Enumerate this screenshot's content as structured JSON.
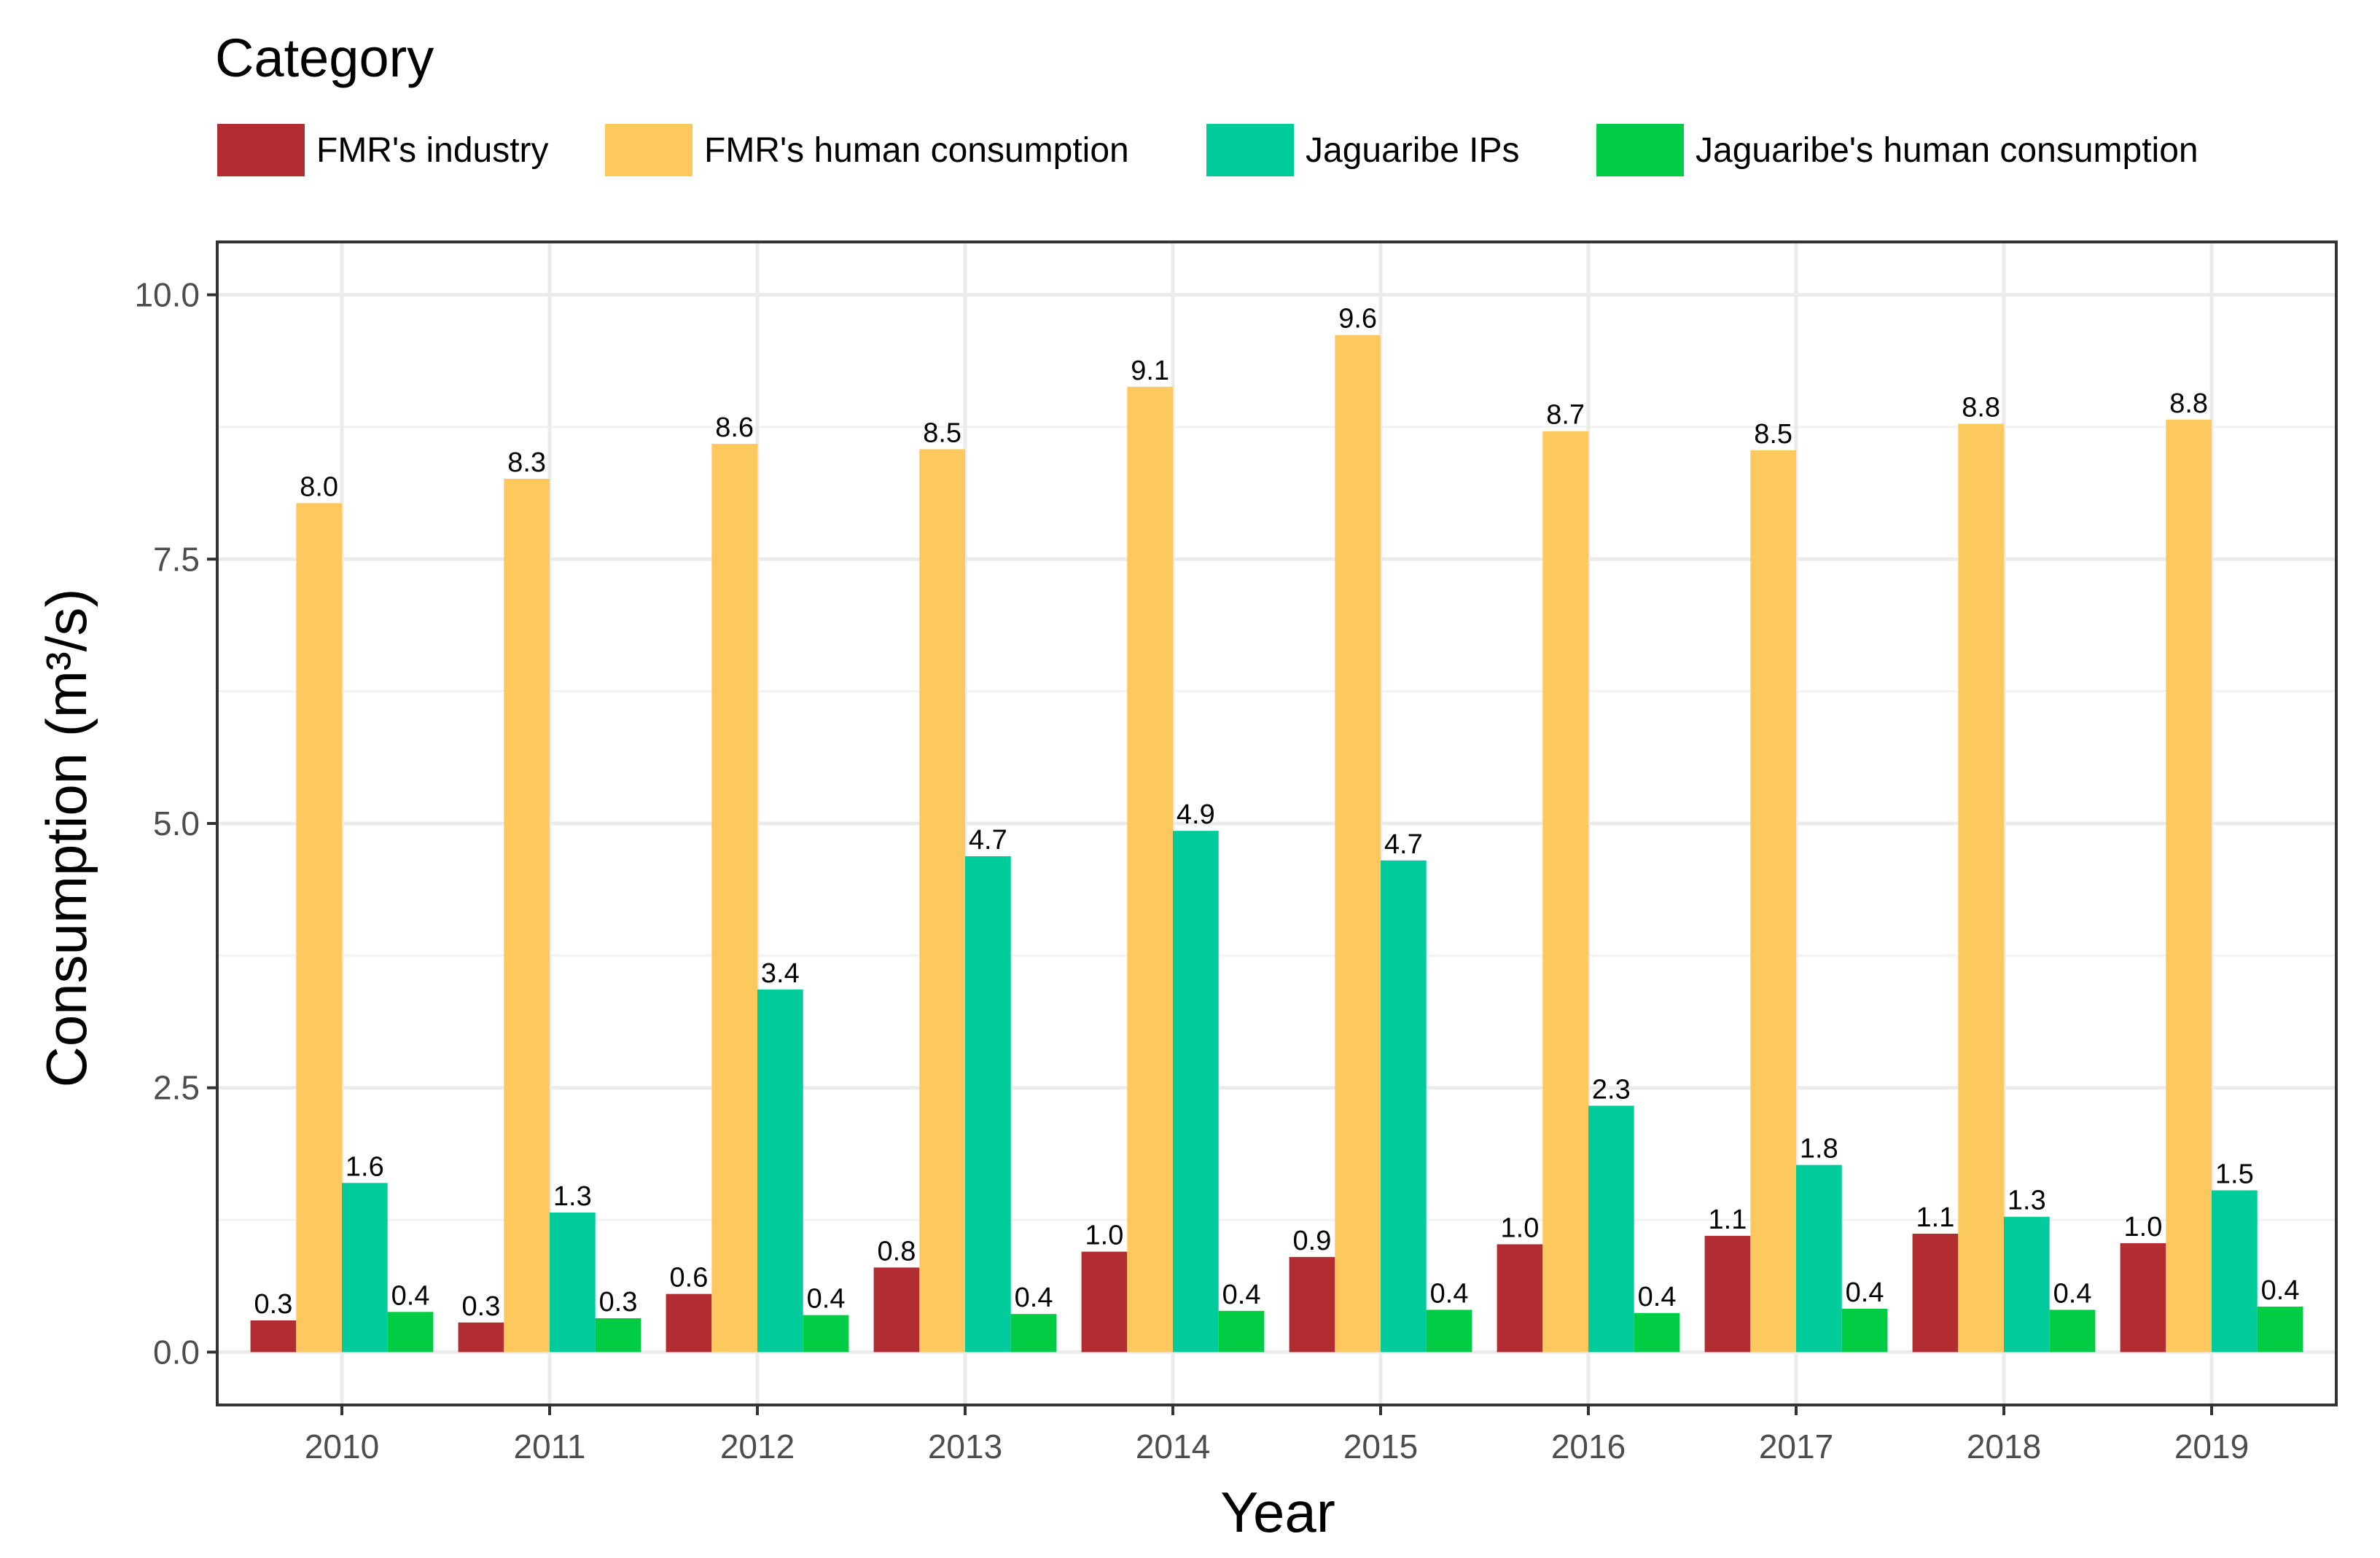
{
  "chart_data": {
    "type": "bar",
    "title": "",
    "xlabel": "Year",
    "ylabel": "Consumption (m³/s)",
    "legend_title": "Category",
    "legend_position": "top",
    "grid": true,
    "ylim": [
      -0.5,
      10.5
    ],
    "yticks": [
      0.0,
      2.5,
      5.0,
      7.5,
      10.0
    ],
    "ytick_labels": [
      "0.0",
      "2.5",
      "5.0",
      "7.5",
      "10.0"
    ],
    "categories": [
      "2010",
      "2011",
      "2012",
      "2013",
      "2014",
      "2015",
      "2016",
      "2017",
      "2018",
      "2019"
    ],
    "series": [
      {
        "name": "FMR's industry",
        "color": "#b22d32",
        "values": [
          0.3,
          0.28,
          0.55,
          0.8,
          0.95,
          0.9,
          1.02,
          1.1,
          1.12,
          1.03
        ],
        "labels": [
          "0.3",
          "0.3",
          "0.6",
          "0.8",
          "1.0",
          "0.9",
          "1.0",
          "1.1",
          "1.1",
          "1.0"
        ]
      },
      {
        "name": "FMR's human consumption",
        "color": "#fdc95e",
        "values": [
          8.03,
          8.26,
          8.59,
          8.54,
          9.13,
          9.62,
          8.71,
          8.53,
          8.78,
          8.82
        ],
        "labels": [
          "8.0",
          "8.3",
          "8.6",
          "8.5",
          "9.1",
          "9.6",
          "8.7",
          "8.5",
          "8.8",
          "8.8"
        ]
      },
      {
        "name": "Jaguaribe IPs",
        "color": "#00cc9b",
        "values": [
          1.6,
          1.32,
          3.43,
          4.69,
          4.93,
          4.65,
          2.33,
          1.77,
          1.28,
          1.53
        ],
        "labels": [
          "1.6",
          "1.3",
          "3.4",
          "4.7",
          "4.9",
          "4.7",
          "2.3",
          "1.8",
          "1.3",
          "1.5"
        ]
      },
      {
        "name": "Jaguaribe's human consumption",
        "color": "#00cc44",
        "values": [
          0.38,
          0.32,
          0.35,
          0.36,
          0.39,
          0.4,
          0.37,
          0.41,
          0.4,
          0.43
        ],
        "labels": [
          "0.4",
          "0.3",
          "0.4",
          "0.4",
          "0.4",
          "0.4",
          "0.4",
          "0.4",
          "0.4",
          "0.4"
        ]
      }
    ]
  }
}
